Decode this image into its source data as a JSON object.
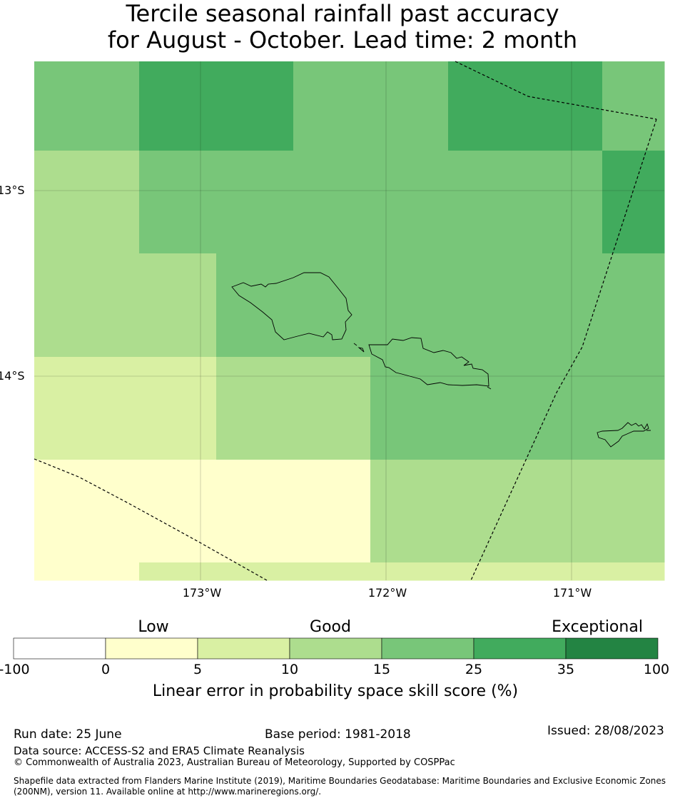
{
  "title": {
    "line1": "Tercile seasonal rainfall past accuracy",
    "line2": "for August - October. Lead time: 2 month"
  },
  "map": {
    "lon_labels": [
      "173°W",
      "172°W",
      "171°W"
    ],
    "lat_labels": [
      "13°S",
      "14°S"
    ],
    "level_colors": {
      "0-5": "#ffffcc",
      "5-10": "#d9f0a3",
      "10-15": "#addd8e",
      "15-25": "#78c679",
      "25-35": "#41ab5d",
      "35-100": "#238443"
    },
    "grid_cells": [
      [
        "15-25",
        "25-35",
        "25-35",
        "15-25",
        "15-25",
        "25-35",
        "25-35",
        "15-25"
      ],
      [
        "10-15",
        "15-25",
        "15-25",
        "15-25",
        "15-25",
        "15-25",
        "15-25",
        "25-35"
      ],
      [
        "10-15",
        "10-15",
        "15-25",
        "15-25",
        "15-25",
        "15-25",
        "15-25",
        "15-25"
      ],
      [
        "5-10",
        "5-10",
        "10-15",
        "10-15",
        "15-25",
        "15-25",
        "15-25",
        "15-25"
      ],
      [
        "0-5",
        "0-5",
        "0-5",
        "0-5",
        "10-15",
        "10-15",
        "10-15",
        "10-15"
      ],
      [
        "0-5",
        "5-10",
        "5-10",
        "5-10",
        "5-10",
        "5-10",
        "5-10",
        "5-10"
      ]
    ]
  },
  "colorbar": {
    "category_labels": [
      "Low",
      "Good",
      "Exceptional"
    ],
    "tick_labels": [
      "-100",
      "0",
      "5",
      "10",
      "15",
      "25",
      "35",
      "100"
    ],
    "colors": [
      "#ffffff",
      "#ffffcc",
      "#d9f0a3",
      "#addd8e",
      "#78c679",
      "#41ab5d",
      "#238443"
    ],
    "label": "Linear error in probability space skill score (%)"
  },
  "footer": {
    "run_date": "Run date: 25 June",
    "base_period": "Base period: 1981-2018",
    "issued": "Issued: 28/08/2023",
    "data_source": "Data source: ACCESS-S2 and ERA5 Climate Reanalysis",
    "copyright": "© Commonwealth of Australia 2023, Australian Bureau of Meteorology, Supported by COSPPac",
    "shapefile_line1": "Shapefile data extracted from Flanders Marine Institute (2019), Maritime Boundaries Geodatabase: Maritime Boundaries and Exclusive Economic Zones",
    "shapefile_line2": "(200NM), version 11. Available online at http://www.marineregions.org/."
  }
}
